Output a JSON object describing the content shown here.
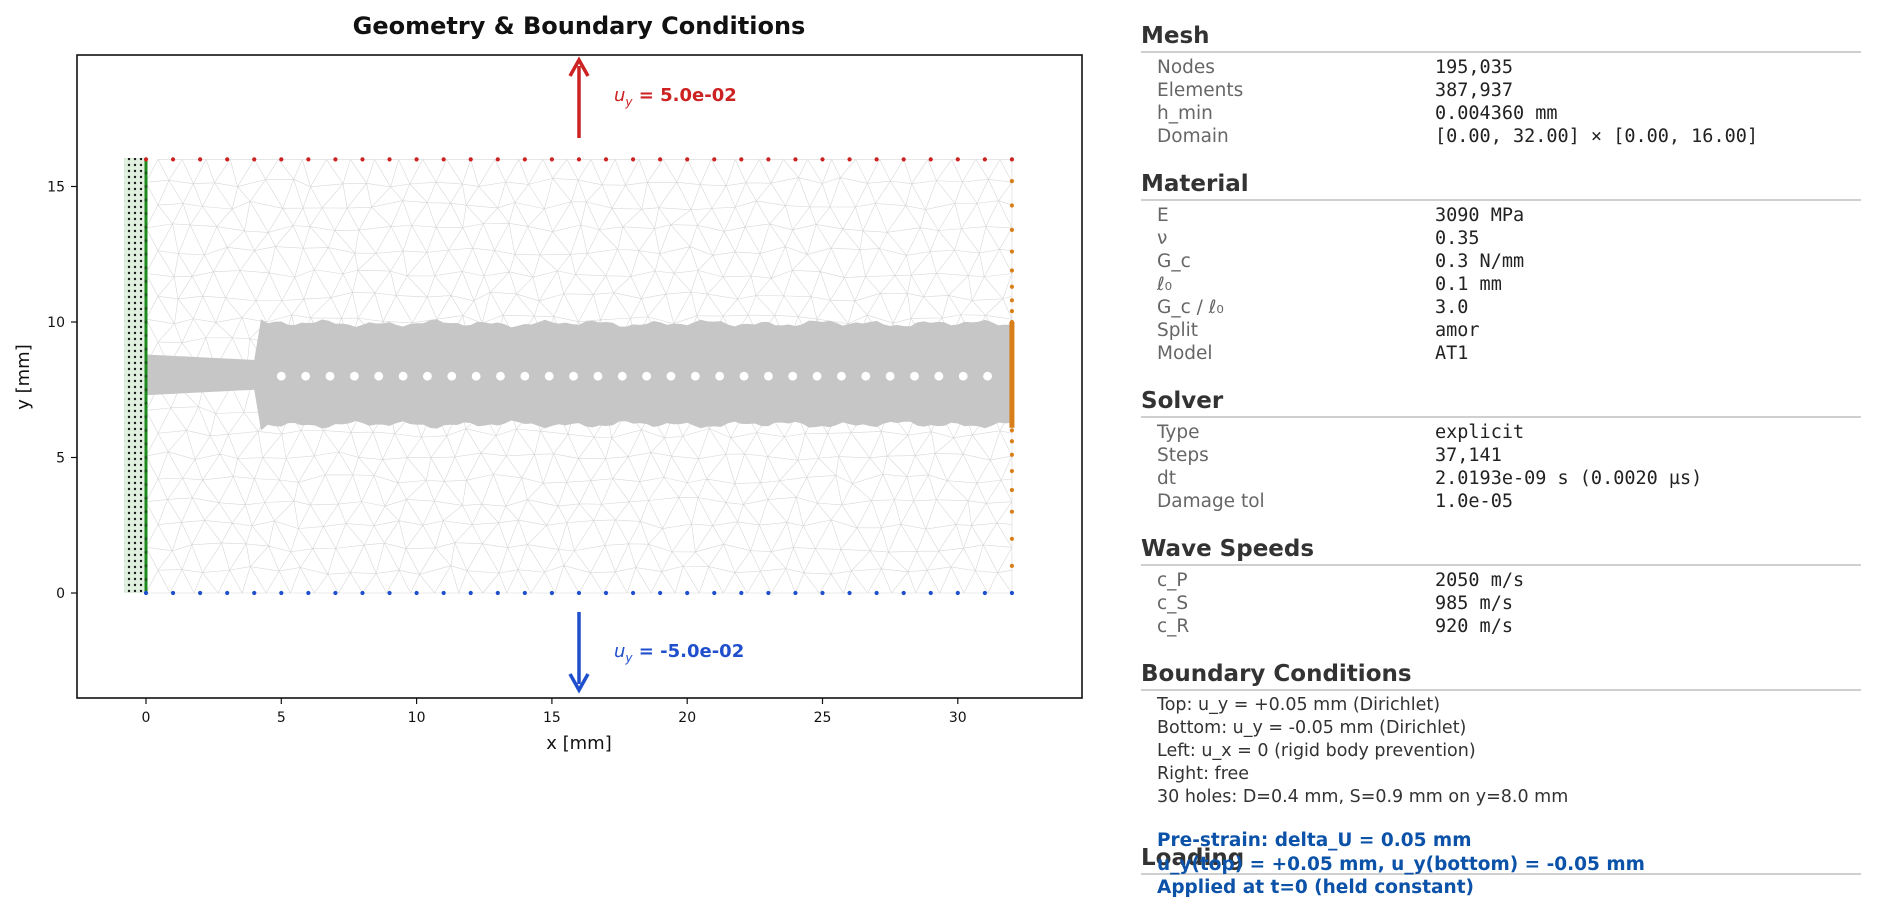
{
  "plot": {
    "title": "Geometry & Boundary Conditions",
    "xlabel": "x [mm]",
    "ylabel": "y [mm]",
    "top_load_label": "u_y = 5.0e-02",
    "top_load_sym": "u",
    "top_load_sub": "y",
    "top_load_text": " = 5.0e-02",
    "bottom_load_label": "u_y = -5.0e-02",
    "bottom_load_sym": "u",
    "bottom_load_sub": "y",
    "bottom_load_text": " = -5.0e-02",
    "colors": {
      "top": "#cc2222",
      "bottom": "#1f4fcc",
      "left": "#1e8a1e",
      "right": "#d97f1a",
      "damage": "#c6c6c6",
      "mesh": "#d8d8d8",
      "fixed_region": "#dff0df"
    },
    "chart_data": {
      "type": "diagram",
      "domain_x": [
        0,
        32
      ],
      "domain_y": [
        0,
        16
      ],
      "xlim": [
        -2.5,
        34.5
      ],
      "ylim": [
        -3.8,
        19.9
      ],
      "xticks": [
        0,
        5,
        10,
        15,
        20,
        25,
        30
      ],
      "yticks": [
        0,
        5,
        10,
        15
      ],
      "holes": {
        "count": 30,
        "y": 8.0,
        "x_start": 5.0,
        "x_end": 31.1
      },
      "top_displacement": 0.05,
      "bottom_displacement": -0.05
    }
  },
  "panel": {
    "mesh": {
      "title": "Mesh",
      "rows": [
        {
          "label": "Nodes",
          "value": "195,035"
        },
        {
          "label": "Elements",
          "value": "387,937"
        },
        {
          "label": "h_min",
          "value": "0.004360 mm"
        },
        {
          "label": "Domain",
          "value": "[0.00, 32.00] × [0.00, 16.00]"
        }
      ]
    },
    "material": {
      "title": "Material",
      "rows": [
        {
          "label": "E",
          "value": "3090 MPa"
        },
        {
          "label": "ν",
          "value": "0.35"
        },
        {
          "label": "G_c",
          "value": "0.3 N/mm"
        },
        {
          "label": "ℓ₀",
          "value": "0.1 mm"
        },
        {
          "label": "G_c / ℓ₀",
          "value": "3.0"
        },
        {
          "label": "Split",
          "value": "amor"
        },
        {
          "label": "Model",
          "value": "AT1"
        }
      ]
    },
    "solver": {
      "title": "Solver",
      "rows": [
        {
          "label": "Type",
          "value": "explicit"
        },
        {
          "label": "Steps",
          "value": "37,141"
        },
        {
          "label": "dt",
          "value": "2.0193e-09 s (0.0020 µs)"
        },
        {
          "label": "Damage tol",
          "value": "1.0e-05"
        }
      ]
    },
    "wave_speeds": {
      "title": "Wave Speeds",
      "rows": [
        {
          "label": "c_P",
          "value": "2050 m/s"
        },
        {
          "label": "c_S",
          "value": "985 m/s"
        },
        {
          "label": "c_R",
          "value": "920 m/s"
        }
      ]
    },
    "boundary_conditions": {
      "title": "Boundary Conditions",
      "lines": [
        "Top: u_y = +0.05 mm (Dirichlet)",
        "Bottom: u_y = -0.05 mm (Dirichlet)",
        "Left: u_x = 0 (rigid body prevention)",
        "Right: free",
        "30 holes: D=0.4 mm, S=0.9 mm on y=8.0 mm"
      ]
    },
    "loading": {
      "title": "Loading",
      "lines": [
        "Pre-strain: delta_U = 0.05 mm",
        "u_y(top) = +0.05 mm, u_y(bottom) = -0.05 mm",
        "Applied at t=0 (held constant)"
      ]
    }
  }
}
